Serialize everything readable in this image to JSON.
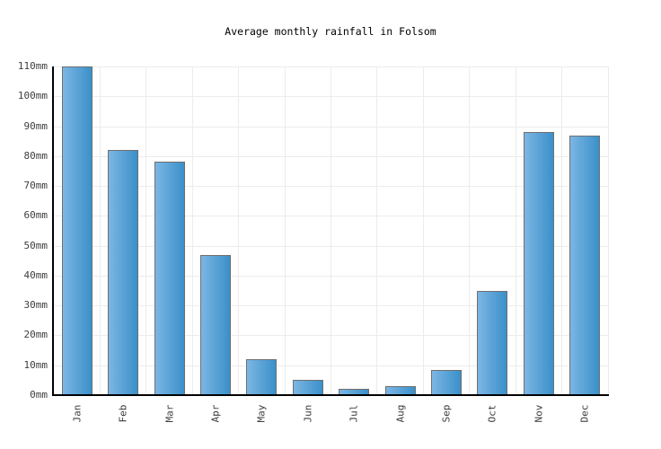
{
  "page": {
    "background_color": "#ffffff"
  },
  "chart_data": {
    "type": "bar",
    "title": "Average monthly rainfall in Folsom",
    "categories": [
      "Jan",
      "Feb",
      "Mar",
      "Apr",
      "May",
      "Jun",
      "Jul",
      "Aug",
      "Sep",
      "Oct",
      "Nov",
      "Dec"
    ],
    "values": [
      110,
      82,
      78,
      47,
      12,
      5,
      2,
      3,
      8.5,
      35,
      88,
      87
    ],
    "unit": "mm",
    "xlabel": "",
    "ylabel": "",
    "ylim": [
      0,
      110
    ],
    "ytick_step": 10,
    "ytick_labels": [
      "0mm",
      "10mm",
      "20mm",
      "30mm",
      "40mm",
      "50mm",
      "60mm",
      "70mm",
      "80mm",
      "90mm",
      "100mm",
      "110mm"
    ],
    "grid": true,
    "legend_position": "none",
    "colors": {
      "bar_gradient_left": "#7cb6e4",
      "bar_gradient_right": "#3a90c9",
      "bar_border": "#6f6f6f",
      "gridline": "#ececec",
      "axis": "#000000",
      "title_text": "#000000",
      "tick_text": "#3d3d3d",
      "background": "#ffffff"
    }
  }
}
